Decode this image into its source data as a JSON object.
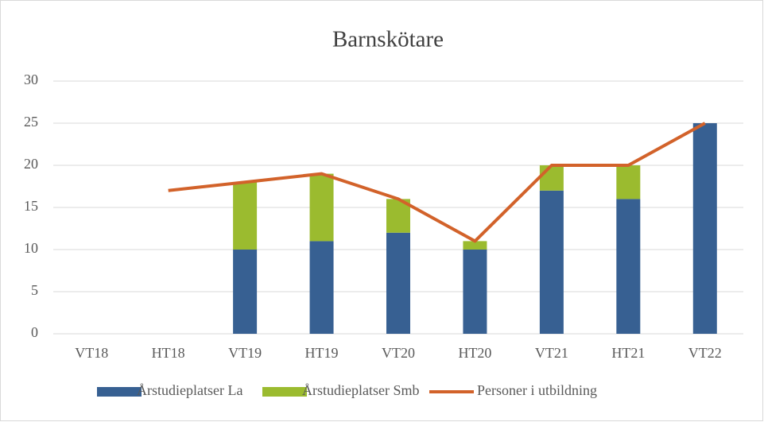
{
  "chart_data": {
    "type": "bar_line",
    "title": "Barnskötare",
    "categories": [
      "VT18",
      "HT18",
      "VT19",
      "HT19",
      "VT20",
      "HT20",
      "VT21",
      "HT21",
      "VT22"
    ],
    "series": [
      {
        "name": "Årstudieplatser La",
        "type": "bar",
        "color": "#376092",
        "values": [
          null,
          null,
          10,
          11,
          12,
          10,
          17,
          16,
          25
        ]
      },
      {
        "name": "Årstudieplatser Smb",
        "type": "bar",
        "color": "#9bbb2f",
        "values": [
          null,
          null,
          8,
          8,
          4,
          1,
          3,
          4,
          0
        ]
      },
      {
        "name": "Personer i utbildning",
        "type": "line",
        "color": "#d2622a",
        "values": [
          null,
          17,
          18,
          19,
          16,
          11,
          20,
          20,
          25
        ]
      }
    ],
    "ylim": [
      0,
      30
    ],
    "yticks": [
      0,
      5,
      10,
      15,
      20,
      25,
      30
    ],
    "grid": true,
    "stacked": true,
    "legend": "bottom"
  }
}
